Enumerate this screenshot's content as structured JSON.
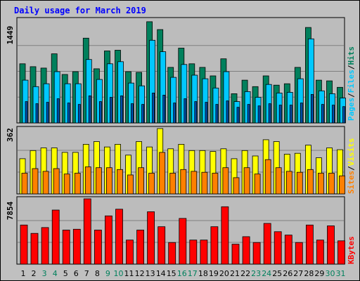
{
  "title": "Daily usage for March 2019",
  "y_max_labels": {
    "top": "1449",
    "middle": "362",
    "bottom": "7854"
  },
  "legend": {
    "top": [
      "Pages",
      "/",
      "Files",
      "/",
      "Hits"
    ],
    "middle": [
      "Sites",
      "/",
      "Visits"
    ],
    "bottom": [
      "KBytes"
    ]
  },
  "colors": {
    "background": "#c0c0c0",
    "grid_area": "#bcbcbc",
    "title": "#0000ff",
    "hits": "#00805c",
    "files": "#00c8ff",
    "pages": "#0050b0",
    "visits": "#ffff00",
    "sites": "#ff8000",
    "kbytes": "#ff0000",
    "weekend_label": "#00805c"
  },
  "chart_data": [
    {
      "type": "bar",
      "panel": "top",
      "categories": [
        "1",
        "2",
        "3",
        "4",
        "5",
        "6",
        "7",
        "8",
        "9",
        "10",
        "11",
        "12",
        "13",
        "14",
        "15",
        "16",
        "17",
        "18",
        "19",
        "20",
        "21",
        "22",
        "23",
        "24",
        "25",
        "26",
        "27",
        "28",
        "29",
        "30",
        "31"
      ],
      "ylim": [
        0,
        1449
      ],
      "series": [
        {
          "name": "Hits",
          "values": [
            830,
            790,
            770,
            970,
            680,
            720,
            1190,
            760,
            1010,
            1020,
            720,
            710,
            1420,
            1310,
            780,
            1050,
            830,
            780,
            660,
            900,
            410,
            600,
            510,
            660,
            530,
            550,
            780,
            1340,
            600,
            590,
            500
          ]
        },
        {
          "name": "Files",
          "values": [
            600,
            510,
            550,
            720,
            550,
            550,
            890,
            610,
            830,
            860,
            560,
            520,
            1160,
            1000,
            640,
            820,
            670,
            620,
            490,
            720,
            300,
            440,
            360,
            540,
            420,
            430,
            620,
            1180,
            450,
            410,
            350
          ]
        },
        {
          "name": "Pages",
          "values": [
            300,
            270,
            290,
            340,
            280,
            260,
            380,
            300,
            360,
            380,
            270,
            260,
            420,
            390,
            280,
            340,
            300,
            290,
            260,
            310,
            220,
            260,
            240,
            270,
            250,
            250,
            280,
            400,
            260,
            250,
            230
          ]
        }
      ]
    },
    {
      "type": "bar",
      "panel": "middle",
      "categories": [
        "1",
        "2",
        "3",
        "4",
        "5",
        "6",
        "7",
        "8",
        "9",
        "10",
        "11",
        "12",
        "13",
        "14",
        "15",
        "16",
        "17",
        "18",
        "19",
        "20",
        "21",
        "22",
        "23",
        "24",
        "25",
        "26",
        "27",
        "28",
        "29",
        "30",
        "31"
      ],
      "ylim": [
        0,
        362
      ],
      "series": [
        {
          "name": "Visits",
          "values": [
            195,
            240,
            255,
            255,
            230,
            230,
            275,
            290,
            260,
            275,
            215,
            290,
            260,
            362,
            250,
            275,
            240,
            240,
            235,
            250,
            195,
            240,
            210,
            300,
            290,
            220,
            225,
            270,
            200,
            255,
            245
          ]
        },
        {
          "name": "Sites",
          "values": [
            115,
            140,
            125,
            140,
            110,
            115,
            150,
            145,
            145,
            135,
            105,
            145,
            115,
            230,
            115,
            135,
            125,
            120,
            115,
            145,
            90,
            145,
            110,
            190,
            145,
            125,
            120,
            135,
            115,
            115,
            100
          ]
        }
      ]
    },
    {
      "type": "bar",
      "panel": "bottom",
      "categories": [
        "1",
        "2",
        "3",
        "4",
        "5",
        "6",
        "7",
        "8",
        "9",
        "10",
        "11",
        "12",
        "13",
        "14",
        "15",
        "16",
        "17",
        "18",
        "19",
        "20",
        "21",
        "22",
        "23",
        "24",
        "25",
        "26",
        "27",
        "28",
        "29",
        "30",
        "31"
      ],
      "ylim": [
        0,
        7854
      ],
      "series": [
        {
          "name": "KBytes",
          "values": [
            4700,
            3700,
            4400,
            6500,
            4100,
            4200,
            7854,
            4100,
            5800,
            6600,
            2900,
            4100,
            6300,
            4500,
            2600,
            5500,
            2900,
            2900,
            4500,
            6900,
            2400,
            3300,
            2600,
            4900,
            3900,
            3500,
            2600,
            4700,
            2900,
            4600,
            2800
          ]
        }
      ]
    }
  ],
  "x_label_colors": [
    "#000000",
    "#000000",
    "#00805c",
    "#00805c",
    "#000000",
    "#000000",
    "#000000",
    "#000000",
    "#00805c",
    "#00805c",
    "#000000",
    "#000000",
    "#000000",
    "#000000",
    "#000000",
    "#00805c",
    "#00805c",
    "#000000",
    "#000000",
    "#000000",
    "#000000",
    "#000000",
    "#00805c",
    "#00805c",
    "#000000",
    "#000000",
    "#000000",
    "#000000",
    "#000000",
    "#00805c",
    "#00805c"
  ]
}
